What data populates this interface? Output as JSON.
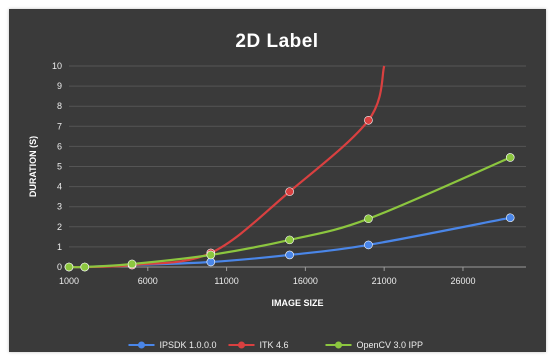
{
  "chart_data": {
    "type": "line",
    "title": "2D Label",
    "xlabel": "IMAGE SIZE",
    "ylabel": "DURATION (S)",
    "xlim": [
      1000,
      30000
    ],
    "ylim": [
      0,
      10
    ],
    "xticks": [
      "1000",
      "6000",
      "11000",
      "16000",
      "21000",
      "26000"
    ],
    "yticks": [
      "0",
      "1",
      "2",
      "3",
      "4",
      "5",
      "6",
      "7",
      "8",
      "9",
      "10"
    ],
    "grid": true,
    "legend_position": "bottom",
    "series": [
      {
        "name": "IPSDK 1.0.0.0",
        "color": "#4a86e8",
        "x": [
          1000,
          2000,
          5000,
          10000,
          15000,
          20000,
          29000
        ],
        "y": [
          0.0,
          0.0,
          0.1,
          0.25,
          0.6,
          1.1,
          2.45
        ]
      },
      {
        "name": "ITK 4.6",
        "color": "#d94040",
        "x": [
          1000,
          2000,
          5000,
          10000,
          15000,
          20000,
          21000
        ],
        "y": [
          0.0,
          0.0,
          0.1,
          0.7,
          3.75,
          7.3,
          10.0
        ],
        "marker_count": 6
      },
      {
        "name": "OpenCV 3.0 IPP",
        "color": "#8cc63f",
        "x": [
          1000,
          2000,
          5000,
          10000,
          15000,
          20000,
          29000
        ],
        "y": [
          0.0,
          0.0,
          0.15,
          0.6,
          1.35,
          2.4,
          5.45
        ]
      }
    ]
  }
}
